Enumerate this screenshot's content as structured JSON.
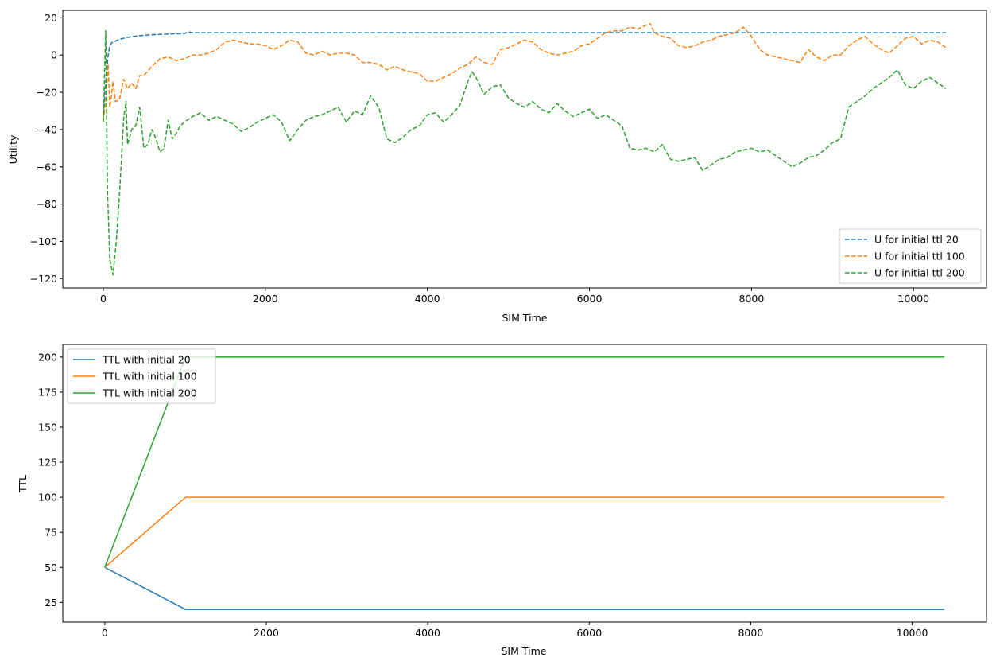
{
  "chart_data": [
    {
      "type": "line",
      "xlabel": "SIM Time",
      "ylabel": "Utility",
      "xlim": [
        -500,
        10900
      ],
      "ylim": [
        -125,
        24
      ],
      "xticks": [
        0,
        2000,
        4000,
        6000,
        8000,
        10000
      ],
      "xtick_labels": [
        "0",
        "2000",
        "4000",
        "6000",
        "8000",
        "10000"
      ],
      "yticks": [
        -120,
        -100,
        -80,
        -60,
        -40,
        -20,
        0,
        20
      ],
      "ytick_labels": [
        "−120",
        "−100",
        "−80",
        "−60",
        "−40",
        "−20",
        "0",
        "20"
      ],
      "legend_position": "lower-right",
      "line_style": "dashed",
      "series": [
        {
          "name": "U for initial ttl 20",
          "color": "#1f77b4",
          "x": [
            0,
            20,
            40,
            60,
            80,
            100,
            150,
            200,
            300,
            400,
            500,
            600,
            700,
            800,
            900,
            1000,
            1050,
            1100,
            1200,
            1500,
            2000,
            3000,
            4000,
            5000,
            6000,
            7000,
            8000,
            9000,
            10000,
            10400
          ],
          "y": [
            -35,
            -20,
            -10,
            0,
            5,
            6.5,
            7.5,
            8.5,
            9.5,
            10.2,
            10.6,
            10.9,
            11.1,
            11.3,
            11.4,
            11.5,
            12.5,
            12,
            12,
            12,
            12,
            12,
            12,
            12,
            12,
            12,
            12,
            12,
            12,
            12
          ]
        },
        {
          "name": "U for initial ttl 100",
          "color": "#ff7f0e",
          "x": [
            0,
            30,
            60,
            80,
            100,
            120,
            150,
            200,
            250,
            300,
            350,
            400,
            450,
            500,
            600,
            700,
            800,
            900,
            1000,
            1100,
            1200,
            1300,
            1400,
            1500,
            1600,
            1700,
            1800,
            1900,
            2000,
            2100,
            2200,
            2300,
            2400,
            2500,
            2600,
            2700,
            2800,
            2900,
            3000,
            3100,
            3200,
            3300,
            3400,
            3500,
            3600,
            3700,
            3800,
            3900,
            4000,
            4100,
            4200,
            4300,
            4400,
            4500,
            4600,
            4700,
            4800,
            4900,
            5000,
            5100,
            5200,
            5300,
            5400,
            5500,
            5600,
            5700,
            5800,
            5900,
            6000,
            6100,
            6200,
            6300,
            6400,
            6500,
            6600,
            6700,
            6750,
            6800,
            6900,
            7000,
            7100,
            7200,
            7300,
            7400,
            7500,
            7600,
            7700,
            7800,
            7900,
            8000,
            8100,
            8200,
            8300,
            8400,
            8500,
            8600,
            8700,
            8800,
            8900,
            9000,
            9100,
            9200,
            9300,
            9400,
            9500,
            9600,
            9700,
            9800,
            9900,
            10000,
            10100,
            10200,
            10300,
            10400
          ],
          "y": [
            -35,
            -25,
            -5,
            -28,
            -22,
            -14,
            -25,
            -24,
            -13,
            -18,
            -15,
            -18,
            -11,
            -11,
            -6,
            -2,
            -1,
            -3,
            -2,
            0,
            0,
            1,
            3,
            7,
            8,
            7,
            6,
            6,
            5,
            3,
            5,
            8,
            7,
            1,
            0,
            2,
            0,
            1,
            1,
            0,
            -4,
            -4,
            -5,
            -8,
            -6,
            -8,
            -9,
            -10,
            -14,
            -14,
            -12,
            -10,
            -7,
            -5,
            -1,
            -4,
            -5,
            3,
            4,
            6,
            8,
            7,
            3,
            1,
            0,
            1,
            2,
            5,
            6,
            9,
            12,
            13,
            13,
            15,
            14,
            16,
            17,
            12,
            10,
            9,
            5,
            4,
            5,
            7,
            8,
            10,
            11,
            12,
            15,
            10,
            3,
            0,
            -1,
            -2,
            -3,
            -4,
            3,
            -1,
            -3,
            0,
            0,
            5,
            8,
            10,
            6,
            3,
            1,
            5,
            9,
            10,
            6,
            8,
            7,
            4
          ]
        },
        {
          "name": "U for initial ttl 200",
          "color": "#2ca02c",
          "x": [
            0,
            30,
            50,
            80,
            120,
            160,
            200,
            250,
            280,
            300,
            350,
            400,
            450,
            500,
            550,
            600,
            650,
            700,
            750,
            800,
            850,
            900,
            950,
            1000,
            1100,
            1200,
            1300,
            1400,
            1500,
            1600,
            1700,
            1800,
            1900,
            2000,
            2100,
            2200,
            2300,
            2400,
            2500,
            2600,
            2700,
            2800,
            2900,
            3000,
            3100,
            3200,
            3300,
            3400,
            3500,
            3600,
            3700,
            3800,
            3900,
            4000,
            4100,
            4200,
            4300,
            4400,
            4500,
            4550,
            4600,
            4700,
            4800,
            4900,
            5000,
            5100,
            5200,
            5300,
            5400,
            5500,
            5600,
            5700,
            5800,
            5900,
            6000,
            6100,
            6200,
            6300,
            6400,
            6500,
            6600,
            6700,
            6800,
            6900,
            7000,
            7100,
            7200,
            7300,
            7400,
            7500,
            7600,
            7700,
            7800,
            7900,
            8000,
            8100,
            8200,
            8300,
            8400,
            8500,
            8600,
            8700,
            8800,
            8900,
            9000,
            9100,
            9200,
            9300,
            9400,
            9500,
            9600,
            9700,
            9800,
            9900,
            10000,
            10100,
            10200,
            10300,
            10400
          ],
          "y": [
            -36,
            13,
            -70,
            -110,
            -118,
            -100,
            -75,
            -35,
            -25,
            -48,
            -40,
            -38,
            -28,
            -50,
            -48,
            -40,
            -45,
            -52,
            -50,
            -35,
            -45,
            -42,
            -38,
            -36,
            -33,
            -31,
            -35,
            -33,
            -35,
            -37,
            -41,
            -39,
            -36,
            -34,
            -32,
            -36,
            -46,
            -40,
            -35,
            -33,
            -32,
            -30,
            -28,
            -36,
            -30,
            -32,
            -22,
            -28,
            -45,
            -47,
            -44,
            -40,
            -38,
            -32,
            -31,
            -36,
            -32,
            -27,
            -14,
            -9,
            -12,
            -21,
            -17,
            -16,
            -23,
            -26,
            -28,
            -25,
            -29,
            -31,
            -26,
            -30,
            -33,
            -31,
            -29,
            -34,
            -32,
            -35,
            -38,
            -50,
            -51,
            -50,
            -52,
            -48,
            -56,
            -57,
            -56,
            -55,
            -62,
            -59,
            -56,
            -55,
            -52,
            -51,
            -50,
            -52,
            -51,
            -54,
            -57,
            -60,
            -58,
            -55,
            -54,
            -51,
            -47,
            -45,
            -28,
            -25,
            -22,
            -18,
            -15,
            -12,
            -8,
            -16,
            -18,
            -14,
            -12,
            -15,
            -18
          ]
        }
      ]
    },
    {
      "type": "line",
      "xlabel": "SIM Time",
      "ylabel": "TTL",
      "xlim": [
        -520,
        10920
      ],
      "ylim": [
        11,
        209
      ],
      "xticks": [
        0,
        2000,
        4000,
        6000,
        8000,
        10000
      ],
      "xtick_labels": [
        "0",
        "2000",
        "4000",
        "6000",
        "8000",
        "10000"
      ],
      "yticks": [
        25,
        50,
        75,
        100,
        125,
        150,
        175,
        200
      ],
      "ytick_labels": [
        "25",
        "50",
        "75",
        "100",
        "125",
        "150",
        "175",
        "200"
      ],
      "legend_position": "upper-left",
      "line_style": "solid",
      "series": [
        {
          "name": "TTL with initial 20",
          "color": "#1f77b4",
          "x": [
            0,
            1000,
            10400
          ],
          "y": [
            50,
            20,
            20
          ]
        },
        {
          "name": "TTL with initial 100",
          "color": "#ff7f0e",
          "x": [
            0,
            1000,
            10400
          ],
          "y": [
            50,
            100,
            100
          ]
        },
        {
          "name": "TTL with initial 200",
          "color": "#2ca02c",
          "x": [
            0,
            1000,
            10400
          ],
          "y": [
            50,
            200,
            200
          ]
        }
      ]
    }
  ]
}
